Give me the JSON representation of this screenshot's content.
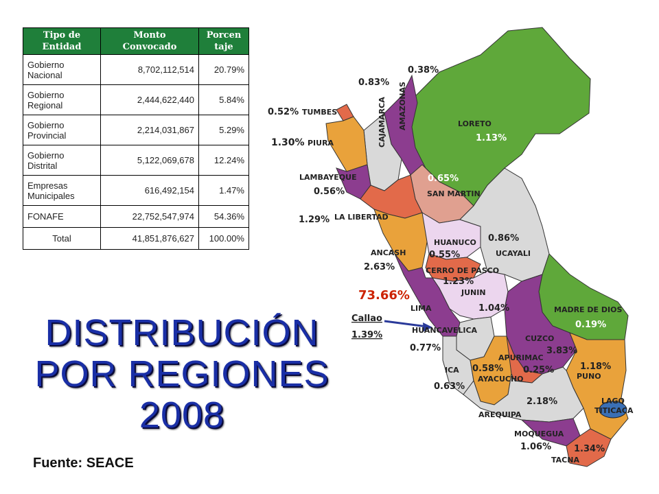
{
  "table": {
    "headers": [
      "Tipo de Entidad",
      "Monto Convocado",
      "Porcentaje"
    ],
    "header_lines": [
      [
        "Tipo de",
        "Entidad"
      ],
      [
        "Monto",
        "Convocado"
      ],
      [
        "Porcen",
        "taje"
      ]
    ],
    "rows": [
      {
        "entity": "Gobierno Nacional",
        "amount": "8,702,112,514",
        "percent": "20.79%"
      },
      {
        "entity": "Gobierno Regional",
        "amount": "2,444,622,440",
        "percent": "5.84%"
      },
      {
        "entity": "Gobierno Provincial",
        "amount": "2,214,031,867",
        "percent": "5.29%"
      },
      {
        "entity": "Gobierno Distrital",
        "amount": "5,122,069,678",
        "percent": "12.24%"
      },
      {
        "entity": "Empresas Municipales",
        "amount": "616,492,154",
        "percent": "1.47%"
      },
      {
        "entity": "FONAFE",
        "amount": "22,752,547,974",
        "percent": "54.36%"
      }
    ],
    "total": {
      "entity": "Total",
      "amount": "41,851,876,627",
      "percent": "100.00%"
    }
  },
  "title_lines": [
    "DISTRIBUCIÓN",
    "POR REGIONES",
    "2008"
  ],
  "source": "Fuente: SEACE",
  "regions": [
    {
      "name": "TUMBES",
      "percent": "0.52%"
    },
    {
      "name": "PIURA",
      "percent": "1.30%"
    },
    {
      "name": "LAMBAYEQUE",
      "percent": "0.56%"
    },
    {
      "name": "LA LIBERTAD",
      "percent": "1.29%"
    },
    {
      "name": "CAJAMARCA",
      "percent": "0.83%"
    },
    {
      "name": "AMAZONAS",
      "percent": "0.38%"
    },
    {
      "name": "LORETO",
      "percent": "1.13%"
    },
    {
      "name": "SAN MARTIN",
      "percent": "0.65%"
    },
    {
      "name": "ANCASH",
      "percent": "2.63%"
    },
    {
      "name": "HUANUCO",
      "percent": "0.55%"
    },
    {
      "name": "UCAYALI",
      "percent": "0.86%"
    },
    {
      "name": "CERRO DE PASCO",
      "percent": "1.23%"
    },
    {
      "name": "LIMA",
      "percent": "73.66%"
    },
    {
      "name": "JUNIN",
      "percent": "1.04%"
    },
    {
      "name": "Callao",
      "percent": "1.39%"
    },
    {
      "name": "HUANCAVELICA",
      "percent": "0.77%"
    },
    {
      "name": "MADRE DE DIOS",
      "percent": "0.19%"
    },
    {
      "name": "CUZCO",
      "percent": "3.83%"
    },
    {
      "name": "ICA",
      "percent": "0.63%"
    },
    {
      "name": "AYACUCHO",
      "percent": "0.58%"
    },
    {
      "name": "APURIMAC",
      "percent": "0.25%"
    },
    {
      "name": "PUNO",
      "percent": "1.18%"
    },
    {
      "name": "AREQUIPA",
      "percent": "2.18%"
    },
    {
      "name": "MOQUEGUA",
      "percent": "1.06%"
    },
    {
      "name": "TACNA",
      "percent": "1.34%"
    }
  ],
  "lake": [
    "LAGO",
    "TITICACA"
  ],
  "colors": {
    "header_green": "#1f7f3a",
    "title_blue": "#1a2fa6",
    "lima_red": "#cc2200",
    "green": "#5fa83a",
    "purple": "#8c3d8f",
    "orange": "#e9a23b",
    "salmon": "#e26a4a",
    "pink": "#e0a090",
    "lavender": "#ecd6ee",
    "grey": "#d9d9d9"
  }
}
